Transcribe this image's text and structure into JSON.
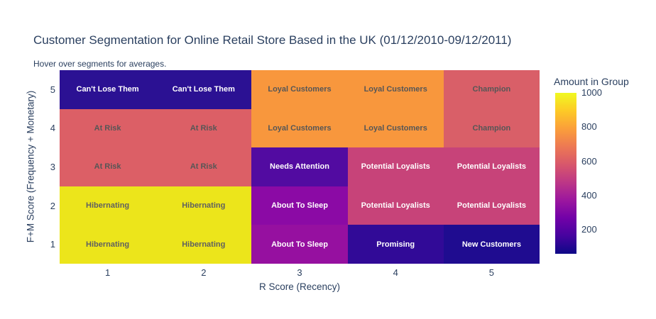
{
  "header": {
    "title": "Customer Segmentation for Online Retail Store Based in the UK (01/12/2010-09/12/2011)",
    "subtitle": "Hover over segments for averages."
  },
  "colors": {
    "text_primary": "#2a3f5f",
    "cell_text_dark": "#565656",
    "cell_text_light": "#ffffff",
    "background": "#ffffff"
  },
  "chart_data": {
    "type": "heatmap",
    "title": "Customer Segmentation for Online Retail Store Based in the UK (01/12/2010-09/12/2011)",
    "subtitle": "Hover over segments for averages.",
    "xlabel": "R Score (Recency)",
    "ylabel": "F+M Score (Frequency + Monetary)",
    "x": [
      1,
      2,
      3,
      4,
      5
    ],
    "y": [
      1,
      2,
      3,
      4,
      5
    ],
    "x_ticks": [
      "1",
      "2",
      "3",
      "4",
      "5"
    ],
    "y_ticks": [
      "5",
      "4",
      "3",
      "2",
      "1"
    ],
    "grid": false,
    "legend_position": "right-colorbar",
    "colorscale": "Plasma",
    "rows_top_to_bottom": [
      {
        "y": "5",
        "cells": [
          {
            "label": "Can't Lose Them",
            "bg": "#2b1193",
            "fg": "#ffffff",
            "value": 90
          },
          {
            "label": "Can't Lose Them",
            "bg": "#2b1193",
            "fg": "#ffffff",
            "value": 90
          },
          {
            "label": "Loyal Customers",
            "bg": "#f8973d",
            "fg": "#565656",
            "value": 790
          },
          {
            "label": "Loyal Customers",
            "bg": "#f8973d",
            "fg": "#565656",
            "value": 790
          },
          {
            "label": "Champion",
            "bg": "#d95f68",
            "fg": "#565656",
            "value": 590
          }
        ]
      },
      {
        "y": "4",
        "cells": [
          {
            "label": "At Risk",
            "bg": "#dc5f66",
            "fg": "#565656",
            "value": 590
          },
          {
            "label": "At Risk",
            "bg": "#dc5f66",
            "fg": "#565656",
            "value": 590
          },
          {
            "label": "Loyal Customers",
            "bg": "#f8973d",
            "fg": "#565656",
            "value": 790
          },
          {
            "label": "Loyal Customers",
            "bg": "#f8973d",
            "fg": "#565656",
            "value": 790
          },
          {
            "label": "Champion",
            "bg": "#d95f68",
            "fg": "#565656",
            "value": 590
          }
        ]
      },
      {
        "y": "3",
        "cells": [
          {
            "label": "At Risk",
            "bg": "#dc5f66",
            "fg": "#565656",
            "value": 590
          },
          {
            "label": "At Risk",
            "bg": "#dc5f66",
            "fg": "#565656",
            "value": 590
          },
          {
            "label": "Needs Attention",
            "bg": "#520ba1",
            "fg": "#ffffff",
            "value": 200
          },
          {
            "label": "Potential Loyalists",
            "bg": "#c74379",
            "fg": "#ffffff",
            "value": 500
          },
          {
            "label": "Potential Loyalists",
            "bg": "#c74379",
            "fg": "#ffffff",
            "value": 500
          }
        ]
      },
      {
        "y": "2",
        "cells": [
          {
            "label": "Hibernating",
            "bg": "#ece51b",
            "fg": "#606060",
            "value": 970
          },
          {
            "label": "Hibernating",
            "bg": "#ece51b",
            "fg": "#606060",
            "value": 970
          },
          {
            "label": "About To Sleep",
            "bg": "#8b0aa5",
            "fg": "#ffffff",
            "value": 330
          },
          {
            "label": "Potential Loyalists",
            "bg": "#c74379",
            "fg": "#ffffff",
            "value": 500
          },
          {
            "label": "Potential Loyalists",
            "bg": "#c74379",
            "fg": "#ffffff",
            "value": 500
          }
        ]
      },
      {
        "y": "1",
        "cells": [
          {
            "label": "Hibernating",
            "bg": "#ece51b",
            "fg": "#606060",
            "value": 970
          },
          {
            "label": "Hibernating",
            "bg": "#ece51b",
            "fg": "#606060",
            "value": 970
          },
          {
            "label": "About To Sleep",
            "bg": "#9610a0",
            "fg": "#ffffff",
            "value": 360
          },
          {
            "label": "Promising",
            "bg": "#310a97",
            "fg": "#ffffff",
            "value": 150
          },
          {
            "label": "New Customers",
            "bg": "#1f0c90",
            "fg": "#ffffff",
            "value": 75
          }
        ]
      }
    ],
    "colorbar": {
      "title": "Amount in Group",
      "tick_labels": [
        "1000",
        "800",
        "600",
        "400",
        "200"
      ],
      "tick_values": [
        1000,
        800,
        600,
        400,
        200
      ],
      "range": [
        60,
        1000
      ],
      "colorscale_plasma": [
        "#0d0887",
        "#46039f",
        "#7201a8",
        "#9c179e",
        "#bd3786",
        "#d8576b",
        "#ed7953",
        "#fb9f3a",
        "#fdca26",
        "#f0f921"
      ]
    }
  }
}
